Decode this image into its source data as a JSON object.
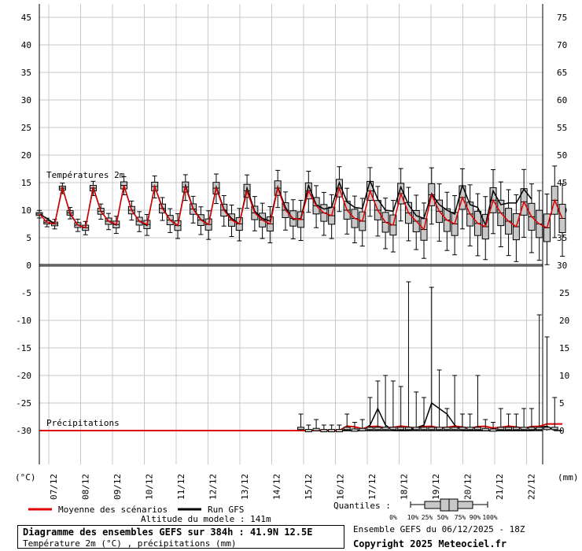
{
  "chart_data": {
    "type": "ensemble boxplot",
    "panels": [
      {
        "label": "Températures 2m",
        "unit": "(°C)",
        "left_axis_ticks": [
          45,
          40,
          35,
          30,
          25,
          20,
          15,
          10,
          5,
          0
        ],
        "right_axis_ticks": [
          75,
          70,
          65,
          60,
          55,
          50,
          45,
          40,
          35,
          30
        ],
        "ylim": [
          0,
          46
        ]
      },
      {
        "label": "Précipitations",
        "unit": "(mm)",
        "left_axis_ticks": [
          -5,
          -10,
          -15,
          -20,
          -25,
          -30
        ],
        "right_axis_ticks": [
          25,
          20,
          15,
          10,
          5,
          0
        ],
        "ylim": [
          -5,
          29
        ]
      }
    ],
    "x_dates": [
      "07/12",
      "08/12",
      "09/12",
      "10/12",
      "11/12",
      "12/12",
      "13/12",
      "14/12",
      "15/12",
      "16/12",
      "17/12",
      "18/12",
      "19/12",
      "20/12",
      "21/12",
      "22/12"
    ],
    "temperature_mean": [
      9.3,
      7.8,
      7.5,
      14.0,
      9.5,
      7.3,
      6.8,
      14.0,
      9.8,
      8.0,
      7.4,
      14.5,
      10.0,
      8.0,
      7.4,
      14.3,
      10.3,
      8.2,
      7.2,
      14.2,
      10.2,
      8.2,
      7.4,
      14.0,
      10.0,
      8.2,
      7.5,
      13.5,
      9.5,
      8.2,
      7.5,
      14.0,
      10.0,
      8.5,
      8.3,
      13.5,
      10.8,
      9.5,
      9.0,
      14.0,
      10.0,
      8.5,
      8.0,
      13.5,
      10.0,
      7.8,
      7.3,
      13.0,
      9.5,
      8.0,
      6.5,
      12.8,
      9.8,
      8.2,
      7.5,
      12.3,
      9.3,
      7.6,
      7.0,
      11.8,
      9.5,
      8.0,
      7.0,
      11.5,
      8.8,
      7.5,
      6.8,
      11.8,
      8.5
    ],
    "temperature_gfs": [
      9.3,
      8.5,
      7.5,
      14.2,
      9.3,
      7.3,
      6.8,
      14.2,
      9.8,
      8.0,
      7.3,
      14.5,
      10.0,
      8.0,
      7.2,
      14.3,
      10.5,
      8.2,
      7.2,
      14.5,
      10.3,
      8.3,
      7.4,
      14.2,
      10.2,
      8.5,
      7.5,
      14.0,
      9.8,
      8.5,
      8.0,
      14.2,
      10.5,
      8.3,
      8.5,
      14.5,
      11.0,
      10.2,
      10.5,
      15.0,
      11.5,
      10.5,
      10.3,
      15.3,
      12.0,
      10.0,
      9.8,
      14.2,
      11.0,
      9.0,
      8.5,
      13.0,
      11.0,
      10.0,
      9.3,
      14.5,
      11.0,
      10.5,
      7.3,
      13.5,
      11.0,
      11.3,
      11.3,
      13.8,
      12.0
    ],
    "precip_mean_note": "near zero until 15/12, small amounts (<1.5 mm) thereafter",
    "legend": [
      {
        "label": "Moyenne des scénarios",
        "color": "#e00000"
      },
      {
        "label": "Run GFS",
        "color": "#000000"
      }
    ],
    "quantiles_label": "Quantiles :",
    "quantiles_ticks": [
      "0%",
      "10%",
      "25%",
      "50%",
      "75%",
      "90%",
      "100%"
    ]
  },
  "footer": {
    "altitude": "Altitude du modele : 141m",
    "title": "Diagramme des ensembles GEFS sur 384h : 41.9N 12.5E",
    "subtitle": "Température 2m (°C) , précipitations (mm)",
    "ensemble_run": "Ensemble GEFS du 06/12/2025 - 18Z",
    "copyright": "Copyright 2025 Meteociel.fr"
  }
}
